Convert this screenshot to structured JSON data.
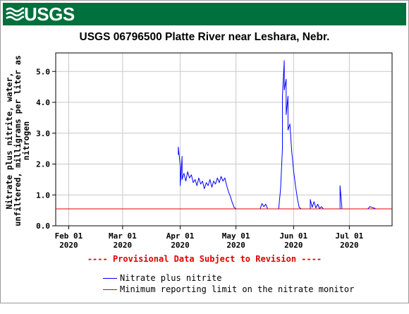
{
  "header": {
    "logo_text": "USGS"
  },
  "title": "USGS 06796500 Platte River near Leshara, Nebr.",
  "notice": "---- Provisional Data Subject to Revision ----",
  "legend": [
    {
      "label": "Nitrate plus nitrite",
      "color": "#0000ff"
    },
    {
      "label": "Minimum reporting limit on the nitrate monitor",
      "color": "#e00000"
    }
  ],
  "colors": {
    "banner": "#00703c",
    "series": "#0000ff",
    "limit": "#e00000",
    "grid": "#c8c8c8"
  },
  "chart_data": {
    "type": "line",
    "title": "USGS 06796500 Platte River near Leshara, Nebr.",
    "ylabel_lines": [
      "Nitrate plus nitrite, water,",
      "unfiltered, milligrams per liter as",
      "nitrogen"
    ],
    "xlim": [
      "2020-01-25",
      "2020-07-24"
    ],
    "ylim": [
      0.0,
      5.6
    ],
    "yticks": [
      0.0,
      1.0,
      2.0,
      3.0,
      4.0,
      5.0
    ],
    "ytick_labels": [
      "0.0",
      "1.0",
      "2.0",
      "3.0",
      "4.0",
      "5.0"
    ],
    "xticks": [
      {
        "date": "2020-02-01",
        "label1": "Feb 01",
        "label2": "2020"
      },
      {
        "date": "2020-03-01",
        "label1": "Mar 01",
        "label2": "2020"
      },
      {
        "date": "2020-04-01",
        "label1": "Apr 01",
        "label2": "2020"
      },
      {
        "date": "2020-05-01",
        "label1": "May 01",
        "label2": "2020"
      },
      {
        "date": "2020-06-01",
        "label1": "Jun 01",
        "label2": "2020"
      },
      {
        "date": "2020-07-01",
        "label1": "Jul 01",
        "label2": "2020"
      }
    ],
    "grid": true,
    "reference_line": {
      "name": "Minimum reporting limit on the nitrate monitor",
      "y": 0.55,
      "color": "#e00000"
    },
    "series": [
      {
        "name": "Nitrate plus nitrite",
        "color": "#0000ff",
        "segments": [
          [
            [
              "2020-03-31",
              2.3
            ],
            [
              "2020-03-31",
              2.55
            ],
            [
              "2020-04-01",
              1.95
            ],
            [
              "2020-04-01",
              1.3
            ],
            [
              "2020-04-02",
              2.25
            ],
            [
              "2020-04-02",
              1.5
            ],
            [
              "2020-04-03",
              1.7
            ],
            [
              "2020-04-04",
              1.45
            ],
            [
              "2020-04-05",
              1.75
            ],
            [
              "2020-04-06",
              1.55
            ],
            [
              "2020-04-07",
              1.65
            ],
            [
              "2020-04-08",
              1.4
            ],
            [
              "2020-04-09",
              1.5
            ],
            [
              "2020-04-10",
              1.3
            ],
            [
              "2020-04-11",
              1.55
            ],
            [
              "2020-04-12",
              1.35
            ],
            [
              "2020-04-13",
              1.45
            ],
            [
              "2020-04-14",
              1.2
            ],
            [
              "2020-04-15",
              1.4
            ],
            [
              "2020-04-16",
              1.3
            ],
            [
              "2020-04-17",
              1.5
            ],
            [
              "2020-04-18",
              1.25
            ],
            [
              "2020-04-19",
              1.45
            ],
            [
              "2020-04-20",
              1.35
            ],
            [
              "2020-04-21",
              1.55
            ],
            [
              "2020-04-22",
              1.4
            ],
            [
              "2020-04-23",
              1.6
            ],
            [
              "2020-04-24",
              1.45
            ],
            [
              "2020-04-25",
              1.55
            ],
            [
              "2020-04-26",
              1.3
            ],
            [
              "2020-04-27",
              1.1
            ],
            [
              "2020-04-28",
              0.95
            ],
            [
              "2020-04-29",
              0.75
            ],
            [
              "2020-04-30",
              0.6
            ],
            [
              "2020-05-01",
              0.55
            ]
          ],
          [
            [
              "2020-05-14",
              0.55
            ],
            [
              "2020-05-15",
              0.72
            ],
            [
              "2020-05-16",
              0.62
            ],
            [
              "2020-05-17",
              0.7
            ],
            [
              "2020-05-18",
              0.56
            ]
          ],
          [
            [
              "2020-05-24",
              0.55
            ],
            [
              "2020-05-25",
              1.2
            ],
            [
              "2020-05-26",
              2.5
            ],
            [
              "2020-05-26",
              4.2
            ],
            [
              "2020-05-27",
              5.35
            ],
            [
              "2020-05-27",
              4.4
            ],
            [
              "2020-05-28",
              4.75
            ],
            [
              "2020-05-28",
              3.6
            ],
            [
              "2020-05-29",
              4.2
            ],
            [
              "2020-05-29",
              3.1
            ],
            [
              "2020-05-30",
              3.3
            ],
            [
              "2020-05-31",
              2.4
            ],
            [
              "2020-06-01",
              1.8
            ],
            [
              "2020-06-02",
              1.3
            ],
            [
              "2020-06-03",
              0.9
            ],
            [
              "2020-06-04",
              0.6
            ],
            [
              "2020-06-05",
              0.55
            ]
          ],
          [
            [
              "2020-06-10",
              0.55
            ],
            [
              "2020-06-10",
              0.85
            ],
            [
              "2020-06-11",
              0.6
            ],
            [
              "2020-06-12",
              0.78
            ],
            [
              "2020-06-13",
              0.58
            ],
            [
              "2020-06-14",
              0.7
            ],
            [
              "2020-06-15",
              0.56
            ],
            [
              "2020-06-16",
              0.62
            ],
            [
              "2020-06-17",
              0.55
            ]
          ],
          [
            [
              "2020-06-26",
              0.55
            ],
            [
              "2020-06-26",
              1.3
            ],
            [
              "2020-06-27",
              0.6
            ],
            [
              "2020-06-27",
              0.55
            ]
          ],
          [
            [
              "2020-07-11",
              0.55
            ],
            [
              "2020-07-12",
              0.62
            ],
            [
              "2020-07-13",
              0.6
            ],
            [
              "2020-07-14",
              0.58
            ],
            [
              "2020-07-15",
              0.56
            ]
          ]
        ]
      }
    ]
  }
}
